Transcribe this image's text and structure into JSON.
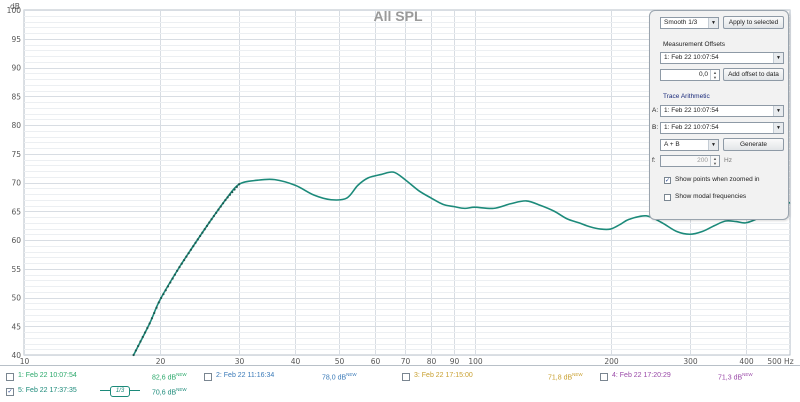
{
  "chart_data": {
    "type": "line",
    "title": "All SPL",
    "y_unit": "dB",
    "x_unit": "Hz",
    "x_scale": "log",
    "xlim": [
      10,
      500
    ],
    "ylim": [
      40,
      100
    ],
    "grid": true,
    "x_ticks": [
      "10",
      "20",
      "30",
      "40",
      "50",
      "60",
      "70",
      "80",
      "90",
      "100",
      "200",
      "300",
      "400",
      "500 Hz"
    ],
    "x_tick_values": [
      10,
      20,
      30,
      40,
      50,
      60,
      70,
      80,
      90,
      100,
      200,
      300,
      400,
      500
    ],
    "y_ticks": [
      "40",
      "45",
      "50",
      "55",
      "60",
      "65",
      "70",
      "75",
      "80",
      "85",
      "90",
      "95",
      "100"
    ],
    "y_tick_values": [
      40,
      45,
      50,
      55,
      60,
      65,
      70,
      75,
      80,
      85,
      90,
      95,
      100
    ],
    "series": [
      {
        "color": "#1c8a7a",
        "x": [
          17.5,
          19,
          20,
          22,
          24,
          26,
          28,
          30,
          33,
          36,
          40,
          44,
          48,
          52,
          55,
          58,
          62,
          66,
          70,
          75,
          80,
          85,
          90,
          95,
          100,
          110,
          120,
          130,
          140,
          150,
          160,
          170,
          180,
          190,
          200,
          210,
          220,
          240,
          260,
          280,
          300,
          320,
          340,
          360,
          380,
          400,
          430,
          460,
          500
        ],
        "y": [
          40,
          45.5,
          49.5,
          55,
          59.5,
          63.5,
          67,
          69.7,
          70.4,
          70.5,
          69.5,
          67.8,
          67,
          67.3,
          69.5,
          70.8,
          71.4,
          71.8,
          70.5,
          68.6,
          67.3,
          66.2,
          65.8,
          65.5,
          65.7,
          65.5,
          66.3,
          66.8,
          66,
          65,
          63.7,
          63,
          62.3,
          61.9,
          61.9,
          62.7,
          63.6,
          64.2,
          63,
          61.5,
          61,
          61.5,
          62.5,
          63.3,
          63.2,
          63,
          64,
          65.5,
          66.5
        ],
        "marker_range": [
          17.5,
          30
        ]
      }
    ]
  },
  "panel": {
    "smoothing": "Smooth 1/3",
    "apply_label": "Apply to selected",
    "offsets_title": "Measurement Offsets",
    "offset_measurement": "1: Feb 22 10:07:54",
    "offset_value": "0,0",
    "add_offset_label": "Add offset to data",
    "arith_title": "Trace Arithmetic",
    "a_label": "A:",
    "a_value": "1: Feb 22 10:07:54",
    "b_label": "B:",
    "b_value": "1: Feb 22 10:07:54",
    "operation": "A + B",
    "generate_label": "Generate",
    "f_label": "f:",
    "f_value": "200",
    "f_unit": "Hz",
    "show_points_label": "Show points when zoomed in",
    "show_points_checked": true,
    "show_modal_label": "Show modal frequencies",
    "show_modal_checked": false
  },
  "legend": [
    {
      "name": "1: Feb 22 10:07:54",
      "value": "82,6 dB",
      "sup": "NEW",
      "color": "#2aa86a",
      "checked": false
    },
    {
      "name": "2: Feb 22 11:16:34",
      "value": "78,0 dB",
      "sup": "NEW",
      "color": "#3a7ab8",
      "checked": false
    },
    {
      "name": "3: Feb 22 17:15:00",
      "value": "71,8 dB",
      "sup": "NEW",
      "color": "#c8a030",
      "checked": false
    },
    {
      "name": "4: Feb 22 17:20:29",
      "value": "71,3 dB",
      "sup": "NEW",
      "color": "#9a4aa8",
      "checked": false
    },
    {
      "name": "5: Feb 22 17:37:35",
      "value": "70,6 dB",
      "sup": "NEW",
      "color": "#1c8a7a",
      "checked": true
    }
  ],
  "smooth_badge": "1/3",
  "check_glyph": "✓",
  "arrow_glyph": "▼"
}
